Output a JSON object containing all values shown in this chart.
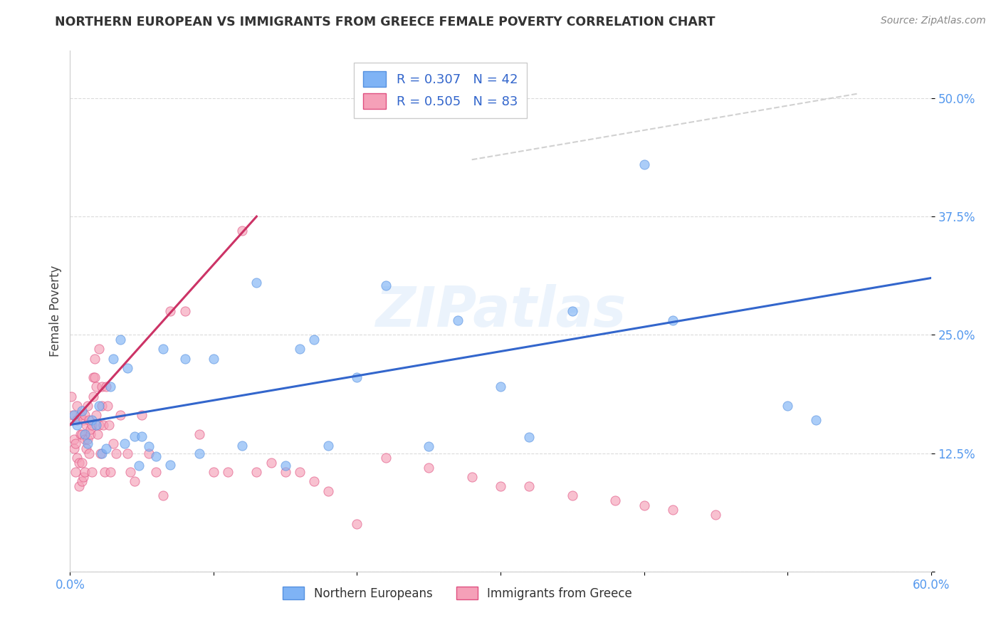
{
  "title": "NORTHERN EUROPEAN VS IMMIGRANTS FROM GREECE FEMALE POVERTY CORRELATION CHART",
  "source": "Source: ZipAtlas.com",
  "ylabel": "Female Poverty",
  "xlabel": "",
  "xlim": [
    0.0,
    0.6
  ],
  "ylim": [
    0.0,
    0.55
  ],
  "yticks": [
    0.0,
    0.125,
    0.25,
    0.375,
    0.5
  ],
  "ytick_labels": [
    "",
    "12.5%",
    "25.0%",
    "37.5%",
    "50.0%"
  ],
  "xticks": [
    0.0,
    0.1,
    0.2,
    0.3,
    0.4,
    0.5,
    0.6
  ],
  "xtick_labels": [
    "0.0%",
    "",
    "",
    "",
    "",
    "",
    "60.0%"
  ],
  "background_color": "#ffffff",
  "grid_color": "#cccccc",
  "watermark": "ZIPatlas",
  "blue_color": "#7fb3f5",
  "blue_edge": "#5590e0",
  "pink_color": "#f5a0b8",
  "pink_edge": "#e05080",
  "line_blue": "#3366cc",
  "line_pink": "#cc3366",
  "line_gray": "#cccccc",
  "blue_x": [
    0.003,
    0.005,
    0.008,
    0.01,
    0.012,
    0.015,
    0.018,
    0.02,
    0.022,
    0.025,
    0.028,
    0.03,
    0.035,
    0.038,
    0.04,
    0.045,
    0.048,
    0.05,
    0.055,
    0.06,
    0.065,
    0.07,
    0.08,
    0.09,
    0.1,
    0.12,
    0.13,
    0.15,
    0.16,
    0.17,
    0.18,
    0.2,
    0.22,
    0.25,
    0.27,
    0.3,
    0.32,
    0.35,
    0.4,
    0.42,
    0.5,
    0.52
  ],
  "blue_y": [
    0.165,
    0.155,
    0.17,
    0.145,
    0.135,
    0.16,
    0.155,
    0.175,
    0.125,
    0.13,
    0.195,
    0.225,
    0.245,
    0.135,
    0.215,
    0.143,
    0.112,
    0.143,
    0.132,
    0.122,
    0.235,
    0.113,
    0.225,
    0.125,
    0.225,
    0.133,
    0.305,
    0.112,
    0.235,
    0.245,
    0.133,
    0.205,
    0.302,
    0.132,
    0.265,
    0.195,
    0.142,
    0.275,
    0.43,
    0.265,
    0.175,
    0.16
  ],
  "pink_x": [
    0.001,
    0.002,
    0.003,
    0.003,
    0.004,
    0.004,
    0.005,
    0.005,
    0.005,
    0.006,
    0.006,
    0.007,
    0.007,
    0.008,
    0.008,
    0.008,
    0.009,
    0.009,
    0.01,
    0.01,
    0.01,
    0.011,
    0.011,
    0.012,
    0.012,
    0.013,
    0.013,
    0.014,
    0.014,
    0.015,
    0.015,
    0.016,
    0.016,
    0.017,
    0.017,
    0.018,
    0.018,
    0.019,
    0.02,
    0.02,
    0.021,
    0.022,
    0.022,
    0.023,
    0.024,
    0.025,
    0.026,
    0.027,
    0.028,
    0.03,
    0.032,
    0.035,
    0.04,
    0.042,
    0.045,
    0.05,
    0.055,
    0.06,
    0.065,
    0.07,
    0.08,
    0.09,
    0.1,
    0.11,
    0.12,
    0.13,
    0.14,
    0.15,
    0.16,
    0.17,
    0.18,
    0.2,
    0.22,
    0.25,
    0.28,
    0.3,
    0.32,
    0.35,
    0.38,
    0.4,
    0.42,
    0.45
  ],
  "pink_y": [
    0.185,
    0.165,
    0.14,
    0.13,
    0.135,
    0.105,
    0.175,
    0.12,
    0.16,
    0.115,
    0.09,
    0.145,
    0.165,
    0.115,
    0.095,
    0.145,
    0.1,
    0.16,
    0.165,
    0.105,
    0.14,
    0.155,
    0.13,
    0.14,
    0.175,
    0.125,
    0.16,
    0.145,
    0.15,
    0.155,
    0.105,
    0.205,
    0.185,
    0.225,
    0.205,
    0.195,
    0.165,
    0.145,
    0.235,
    0.155,
    0.125,
    0.195,
    0.175,
    0.155,
    0.105,
    0.195,
    0.175,
    0.155,
    0.105,
    0.135,
    0.125,
    0.165,
    0.125,
    0.105,
    0.095,
    0.165,
    0.125,
    0.105,
    0.08,
    0.275,
    0.275,
    0.145,
    0.105,
    0.105,
    0.36,
    0.105,
    0.115,
    0.105,
    0.105,
    0.095,
    0.085,
    0.05,
    0.12,
    0.11,
    0.1,
    0.09,
    0.09,
    0.08,
    0.075,
    0.07,
    0.065,
    0.06
  ],
  "gray_line_x": [
    0.28,
    0.55
  ],
  "gray_line_y": [
    0.435,
    0.505
  ],
  "blue_line_x0": 0.0,
  "blue_line_x1": 0.6,
  "blue_line_y0": 0.155,
  "blue_line_y1": 0.31,
  "pink_line_x0": 0.0,
  "pink_line_x1": 0.13,
  "pink_line_y0": 0.155,
  "pink_line_y1": 0.375
}
